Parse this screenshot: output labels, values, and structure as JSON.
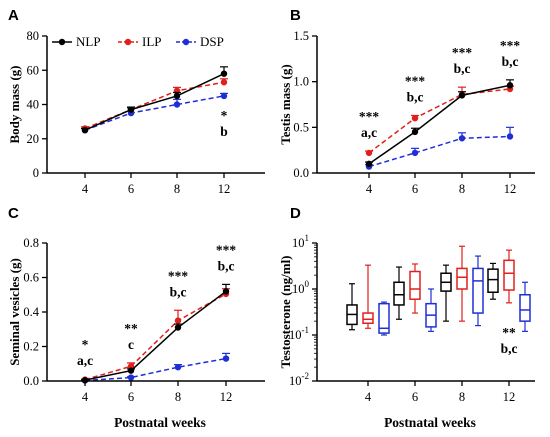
{
  "colors": {
    "NLP": "#000000",
    "ILP": "#e0201c",
    "DSP": "#1f2fd6"
  },
  "chart_data": [
    {
      "panel": "A",
      "type": "line",
      "ylabel": "Body mass (g)",
      "xlabel": "",
      "x": [
        4,
        6,
        8,
        12
      ],
      "xticks": [
        "4",
        "6",
        "8",
        "12"
      ],
      "ylim": [
        0,
        80
      ],
      "yticks": [
        "0",
        "20",
        "40",
        "60",
        "80"
      ],
      "yticks_values": [
        0,
        20,
        40,
        60,
        80
      ],
      "legend": [
        "NLP",
        "ILP",
        "DSP"
      ],
      "series": [
        {
          "name": "NLP",
          "values": [
            25,
            37,
            45,
            58
          ],
          "err": [
            1,
            1.5,
            2,
            4
          ]
        },
        {
          "name": "ILP",
          "values": [
            26,
            37,
            48,
            53
          ],
          "err": [
            1,
            1.5,
            2,
            2
          ]
        },
        {
          "name": "DSP",
          "values": [
            25,
            35,
            40,
            45
          ],
          "err": [
            1,
            3,
            3,
            1.5
          ]
        }
      ],
      "annotations": [
        {
          "x": 12,
          "lines": [
            "*",
            "b"
          ]
        }
      ]
    },
    {
      "panel": "B",
      "type": "line",
      "ylabel": "Testis mass (g)",
      "xlabel": "",
      "x": [
        4,
        6,
        8,
        12
      ],
      "xticks": [
        "4",
        "6",
        "8",
        "12"
      ],
      "ylim": [
        0,
        1.5
      ],
      "yticks": [
        "0.0",
        "0.5",
        "1.0",
        "1.5"
      ],
      "yticks_values": [
        0,
        0.5,
        1.0,
        1.5
      ],
      "series": [
        {
          "name": "NLP",
          "values": [
            0.1,
            0.45,
            0.85,
            0.96
          ],
          "err": [
            0.02,
            0.04,
            0.04,
            0.06
          ]
        },
        {
          "name": "ILP",
          "values": [
            0.22,
            0.6,
            0.86,
            0.92
          ],
          "err": [
            0.02,
            0.03,
            0.08,
            0.03
          ]
        },
        {
          "name": "DSP",
          "values": [
            0.07,
            0.22,
            0.38,
            0.4
          ],
          "err": [
            0.02,
            0.05,
            0.06,
            0.1
          ]
        }
      ],
      "annotations": [
        {
          "x": 4,
          "lines": [
            "***",
            "a,c"
          ]
        },
        {
          "x": 6,
          "lines": [
            "***",
            "b,c"
          ]
        },
        {
          "x": 8,
          "lines": [
            "***",
            "b,c"
          ]
        },
        {
          "x": 12,
          "lines": [
            "***",
            "b,c"
          ]
        }
      ]
    },
    {
      "panel": "C",
      "type": "line",
      "ylabel": "Seminal vesicles (g)",
      "xlabel": "Postnatal weeks",
      "x": [
        4,
        6,
        8,
        12
      ],
      "xticks": [
        "4",
        "6",
        "8",
        "12"
      ],
      "ylim": [
        0,
        0.8
      ],
      "yticks": [
        "0.0",
        "0.2",
        "0.4",
        "0.6",
        "0.8"
      ],
      "yticks_values": [
        0,
        0.2,
        0.4,
        0.6,
        0.8
      ],
      "series": [
        {
          "name": "NLP",
          "values": [
            0.005,
            0.06,
            0.31,
            0.52
          ],
          "err": [
            0.003,
            0.01,
            0.02,
            0.04
          ]
        },
        {
          "name": "ILP",
          "values": [
            0.008,
            0.085,
            0.35,
            0.505
          ],
          "err": [
            0.003,
            0.02,
            0.06,
            0.03
          ]
        },
        {
          "name": "DSP",
          "values": [
            0.003,
            0.02,
            0.08,
            0.13
          ],
          "err": [
            0.002,
            0.005,
            0.015,
            0.03
          ]
        }
      ],
      "annotations": [
        {
          "x": 4,
          "lines": [
            "*",
            "a,c"
          ]
        },
        {
          "x": 6,
          "lines": [
            "**",
            "c"
          ]
        },
        {
          "x": 8,
          "lines": [
            "***",
            "b,c"
          ]
        },
        {
          "x": 12,
          "lines": [
            "***",
            "b,c"
          ]
        }
      ]
    },
    {
      "panel": "D",
      "type": "box",
      "ylabel": "Testosterone (ng/ml)",
      "xlabel": "Postnatal weeks",
      "yscale": "log",
      "ylim": [
        0.01,
        10
      ],
      "yticks_values": [
        0.01,
        0.1,
        1,
        10
      ],
      "ytick_exponents": [
        "-2",
        "-1",
        "0",
        "1"
      ],
      "ytick_base": "10",
      "x": [
        4,
        6,
        8,
        12
      ],
      "xticks": [
        "4",
        "6",
        "8",
        "12"
      ],
      "groups": [
        {
          "x": 4,
          "boxes": [
            {
              "series": "NLP",
              "whislo": 0.13,
              "q1": 0.17,
              "med": 0.28,
              "q3": 0.45,
              "whishi": 1.3
            },
            {
              "series": "ILP",
              "whislo": 0.14,
              "q1": 0.18,
              "med": 0.22,
              "q3": 0.3,
              "whishi": 3.3
            },
            {
              "series": "DSP",
              "whislo": 0.1,
              "q1": 0.11,
              "med": 0.14,
              "q3": 0.48,
              "whishi": 0.52
            }
          ]
        },
        {
          "x": 6,
          "boxes": [
            {
              "series": "NLP",
              "whislo": 0.22,
              "q1": 0.45,
              "med": 0.75,
              "q3": 1.4,
              "whishi": 3.0
            },
            {
              "series": "ILP",
              "whislo": 0.3,
              "q1": 0.6,
              "med": 1.0,
              "q3": 2.4,
              "whishi": 3.5
            },
            {
              "series": "DSP",
              "whislo": 0.12,
              "q1": 0.15,
              "med": 0.27,
              "q3": 0.48,
              "whishi": 1.0
            }
          ]
        },
        {
          "x": 8,
          "boxes": [
            {
              "series": "NLP",
              "whislo": 0.2,
              "q1": 0.9,
              "med": 1.4,
              "q3": 2.2,
              "whishi": 3.3
            },
            {
              "series": "ILP",
              "whislo": 0.2,
              "q1": 1.0,
              "med": 1.8,
              "q3": 2.8,
              "whishi": 8.5
            },
            {
              "series": "DSP",
              "whislo": 0.16,
              "q1": 0.3,
              "med": 1.5,
              "q3": 2.8,
              "whishi": 5.2
            }
          ]
        },
        {
          "x": 12,
          "boxes": [
            {
              "series": "NLP",
              "whislo": 0.6,
              "q1": 0.85,
              "med": 1.6,
              "q3": 2.7,
              "whishi": 3.6
            },
            {
              "series": "ILP",
              "whislo": 0.5,
              "q1": 0.95,
              "med": 2.2,
              "q3": 4.2,
              "whishi": 7.0
            },
            {
              "series": "DSP",
              "whislo": 0.12,
              "q1": 0.2,
              "med": 0.35,
              "q3": 0.75,
              "whishi": 1.4
            }
          ]
        }
      ],
      "annotations": [
        {
          "x": 12,
          "lines": [
            "**",
            "b,c"
          ]
        }
      ]
    }
  ]
}
